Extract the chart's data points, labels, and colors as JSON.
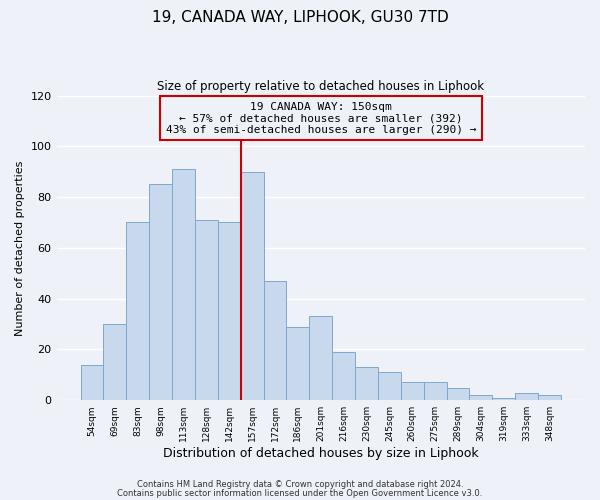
{
  "title": "19, CANADA WAY, LIPHOOK, GU30 7TD",
  "subtitle": "Size of property relative to detached houses in Liphook",
  "xlabel": "Distribution of detached houses by size in Liphook",
  "ylabel": "Number of detached properties",
  "bar_color": "#c8d9ee",
  "bar_edge_color": "#7ea8cc",
  "categories": [
    "54sqm",
    "69sqm",
    "83sqm",
    "98sqm",
    "113sqm",
    "128sqm",
    "142sqm",
    "157sqm",
    "172sqm",
    "186sqm",
    "201sqm",
    "216sqm",
    "230sqm",
    "245sqm",
    "260sqm",
    "275sqm",
    "289sqm",
    "304sqm",
    "319sqm",
    "333sqm",
    "348sqm"
  ],
  "values": [
    14,
    30,
    70,
    85,
    91,
    71,
    70,
    90,
    47,
    29,
    33,
    19,
    13,
    11,
    7,
    7,
    5,
    2,
    1,
    3,
    2
  ],
  "ylim": [
    0,
    120
  ],
  "yticks": [
    0,
    20,
    40,
    60,
    80,
    100,
    120
  ],
  "vline_x_index": 7,
  "vline_color": "#cc0000",
  "annotation_line1": "19 CANADA WAY: 150sqm",
  "annotation_line2": "← 57% of detached houses are smaller (392)",
  "annotation_line3": "43% of semi-detached houses are larger (290) →",
  "annotation_box_edge": "#cc0000",
  "footer_line1": "Contains HM Land Registry data © Crown copyright and database right 2024.",
  "footer_line2": "Contains public sector information licensed under the Open Government Licence v3.0.",
  "background_color": "#eef2f8",
  "grid_color": "#ffffff"
}
